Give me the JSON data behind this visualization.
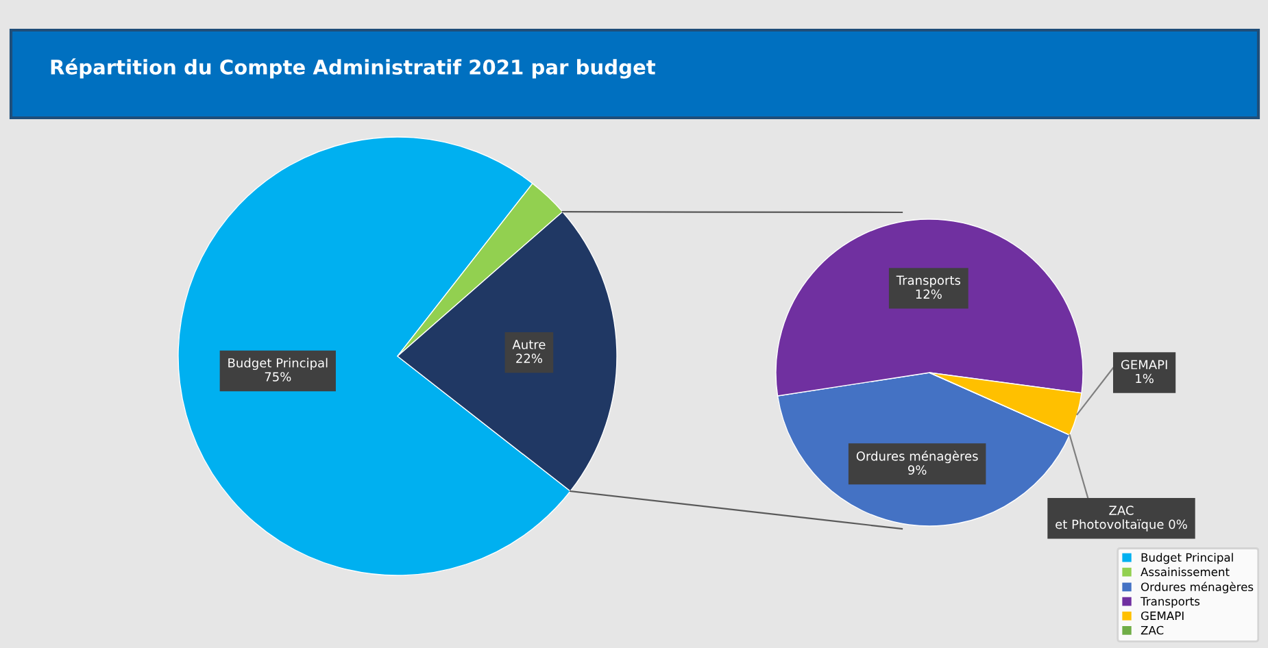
{
  "chart_data": [
    {
      "type": "pie",
      "title": "Répartition du Compte Administratif 2021 par budget",
      "categories": [
        "Budget Principal",
        "Assainissement",
        "Autre"
      ],
      "values": [
        75,
        3,
        22
      ],
      "colors": [
        "#00b0f0",
        "#92d050",
        "#203864"
      ],
      "value_labels": [
        "75%",
        null,
        "22%"
      ],
      "legend": "lower right"
    },
    {
      "type": "pie",
      "categories": [
        "Ordures ménagères",
        "Transports",
        "GEMAPI",
        "ZAC"
      ],
      "values": [
        9,
        12,
        1,
        0
      ],
      "colors": [
        "#4472c4",
        "#7030a0",
        "#ffc000",
        "#70ad47"
      ],
      "value_labels": [
        "9%",
        "12%",
        "1%",
        "et Photovoltaïque 0%"
      ],
      "legend": "lower right"
    }
  ]
}
